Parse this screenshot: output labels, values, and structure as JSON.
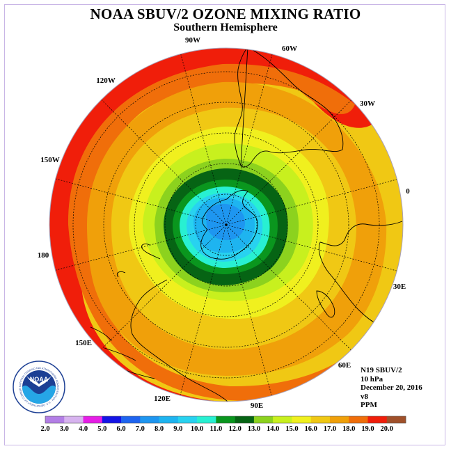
{
  "title": "NOAA SBUV/2 OZONE MIXING RATIO",
  "subtitle": "Southern Hemisphere",
  "info": {
    "satellite": "N19 SBUV/2",
    "pressure": "10 hPa",
    "date": "December 20, 2016",
    "version": "v8",
    "units": "PPM"
  },
  "longitude_labels": [
    "90W",
    "60W",
    "30W",
    "0",
    "30E",
    "60E",
    "90E",
    "120E",
    "150E",
    "180",
    "150W",
    "120W"
  ],
  "colorbar": {
    "ticks": [
      "2.0",
      "3.0",
      "4.0",
      "5.0",
      "6.0",
      "7.0",
      "8.0",
      "9.0",
      "10.0",
      "11.0",
      "12.0",
      "13.0",
      "14.0",
      "15.0",
      "16.0",
      "17.0",
      "18.0",
      "19.0",
      "20.0"
    ],
    "colors": [
      "#b37ee6",
      "#d7b3ef",
      "#e61ee6",
      "#1414e6",
      "#1e64f0",
      "#1e96f0",
      "#1eb4f0",
      "#28d2f0",
      "#28f0d2",
      "#0a961e",
      "#066414",
      "#8cd21e",
      "#c8f01e",
      "#f0f01e",
      "#f0c814",
      "#f0a00a",
      "#f06e0a",
      "#f01e0a",
      "#a0502a"
    ]
  },
  "contours": [
    {
      "value": "19.0",
      "color": "#f01e0a"
    },
    {
      "value": "18.0",
      "color": "#f06e0a"
    },
    {
      "value": "17.0",
      "color": "#f0a00a"
    },
    {
      "value": "16.0",
      "color": "#f0c814"
    },
    {
      "value": "15.0",
      "color": "#f0f01e"
    },
    {
      "value": "14.0",
      "color": "#c8f01e"
    },
    {
      "value": "13.0",
      "color": "#8cd21e"
    },
    {
      "value": "12.0",
      "color": "#066414"
    },
    {
      "value": "11.0",
      "color": "#0a961e"
    },
    {
      "value": "10.0",
      "color": "#28f0d2"
    },
    {
      "value": "9.0",
      "color": "#28d2f0"
    },
    {
      "value": "8.0",
      "color": "#1eb4f0"
    },
    {
      "value": "7.0",
      "color": "#1e96f0"
    }
  ],
  "logo": {
    "text": "NOAA",
    "ring_text": "NATIONAL OCEANIC AND ATMOSPHERIC ADMINISTRATION · U.S. DEPARTMENT OF COMMERCE"
  }
}
